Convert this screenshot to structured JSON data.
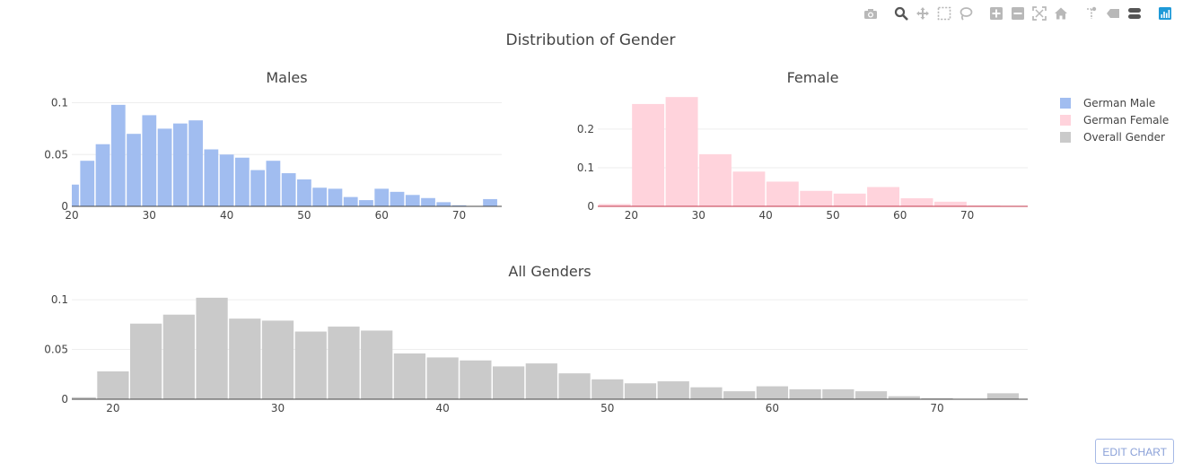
{
  "title": "Distribution of Gender",
  "toolbar": {
    "buttons": [
      {
        "name": "camera-icon",
        "label": "Download plot as a png",
        "group": 1
      },
      {
        "name": "zoom-icon",
        "label": "Zoom",
        "group": 2
      },
      {
        "name": "pan-icon",
        "label": "Pan",
        "group": 2
      },
      {
        "name": "box-select-icon",
        "label": "Box Select",
        "group": 2
      },
      {
        "name": "lasso-select-icon",
        "label": "Lasso Select",
        "group": 2
      },
      {
        "name": "zoom-in-icon",
        "label": "Zoom in",
        "group": 3
      },
      {
        "name": "zoom-out-icon",
        "label": "Zoom out",
        "group": 3
      },
      {
        "name": "autoscale-icon",
        "label": "Autoscale",
        "group": 3
      },
      {
        "name": "home-icon",
        "label": "Reset axes",
        "group": 3
      },
      {
        "name": "spike-lines-icon",
        "label": "Toggle Spike Lines",
        "group": 4
      },
      {
        "name": "hover-closest-icon",
        "label": "Show closest data on hover",
        "group": 4
      },
      {
        "name": "hover-compare-icon",
        "label": "Compare data on hover",
        "group": 4
      },
      {
        "name": "plotly-logo-icon",
        "label": "Produced with Plotly",
        "group": 5
      }
    ],
    "active": "zoom-icon"
  },
  "edit_button": "EDIT CHART",
  "colors": {
    "male": "#a1bdf0",
    "female": "#ffd3dc",
    "all": "#cacaca",
    "grid": "#eeeeee",
    "axis": "#444444",
    "female_line": "#c0344a"
  },
  "chart_data": [
    {
      "type": "bar",
      "title": "Males",
      "legend_name": "German Male",
      "bin_width": 2,
      "bin_start": 19,
      "values": [
        0.021,
        0.044,
        0.06,
        0.098,
        0.07,
        0.088,
        0.075,
        0.08,
        0.083,
        0.055,
        0.05,
        0.047,
        0.035,
        0.044,
        0.032,
        0.026,
        0.018,
        0.017,
        0.009,
        0.006,
        0.017,
        0.014,
        0.011,
        0.008,
        0.004,
        0.001,
        0.0,
        0.007
      ],
      "xlim": [
        20,
        75.5
      ],
      "ylim": [
        0,
        0.11
      ],
      "xticks": [
        20,
        30,
        40,
        50,
        60,
        70
      ],
      "yticks": [
        0,
        0.05,
        0.1
      ],
      "ytick_labels": [
        "0",
        "0.05",
        "0.1"
      ]
    },
    {
      "type": "bar",
      "title": "Female",
      "legend_name": "German Female",
      "bin_width": 5,
      "bin_start": 15,
      "values": [
        0.006,
        0.265,
        0.283,
        0.135,
        0.09,
        0.064,
        0.04,
        0.033,
        0.05,
        0.021,
        0.012,
        0.002,
        0.001
      ],
      "xlim": [
        15,
        79
      ],
      "ylim": [
        0,
        0.295
      ],
      "xticks": [
        20,
        30,
        40,
        50,
        60,
        70
      ],
      "yticks": [
        0,
        0.1,
        0.2
      ],
      "ytick_labels": [
        "0",
        "0.1",
        "0.2"
      ]
    },
    {
      "type": "bar",
      "title": "All Genders",
      "legend_name": "Overall Gender",
      "bin_width": 2,
      "bin_start": 17,
      "values": [
        0.002,
        0.028,
        0.076,
        0.085,
        0.102,
        0.081,
        0.079,
        0.068,
        0.073,
        0.069,
        0.046,
        0.042,
        0.039,
        0.033,
        0.036,
        0.026,
        0.02,
        0.016,
        0.018,
        0.012,
        0.008,
        0.013,
        0.01,
        0.01,
        0.008,
        0.003,
        0.001,
        0.0,
        0.006
      ],
      "xlim": [
        17.5,
        75.5
      ],
      "ylim": [
        0,
        0.11
      ],
      "xticks": [
        20,
        30,
        40,
        50,
        60,
        70
      ],
      "yticks": [
        0,
        0.05,
        0.1
      ],
      "ytick_labels": [
        "0",
        "0.05",
        "0.1"
      ]
    }
  ]
}
